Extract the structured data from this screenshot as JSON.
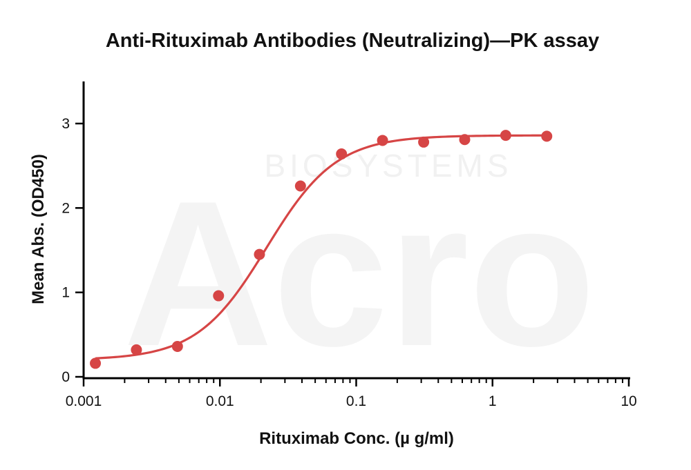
{
  "chart_data": {
    "type": "scatter",
    "title": "Anti-Rituximab Antibodies (Neutralizing)—PK assay",
    "xlabel": "Rituximab Conc. (µ g/ml)",
    "ylabel": "Mean Abs. (OD450)",
    "xscale": "log",
    "xlim": [
      0.001,
      10
    ],
    "ylim": [
      0,
      3.5
    ],
    "xticks": [
      0.001,
      0.01,
      0.1,
      1,
      10
    ],
    "xtick_labels": [
      "0.001",
      "0.01",
      "0.1",
      "1",
      "10"
    ],
    "yticks": [
      0,
      1,
      2,
      3
    ],
    "ytick_labels": [
      "0",
      "1",
      "2",
      "3"
    ],
    "grid": false,
    "legend": "none",
    "series": [
      {
        "points": [
          {
            "x": 0.00122,
            "y": 0.16
          },
          {
            "x": 0.00244,
            "y": 0.32
          },
          {
            "x": 0.00488,
            "y": 0.36
          },
          {
            "x": 0.00977,
            "y": 0.96
          },
          {
            "x": 0.0195,
            "y": 1.45
          },
          {
            "x": 0.039,
            "y": 2.26
          },
          {
            "x": 0.078,
            "y": 2.64
          },
          {
            "x": 0.156,
            "y": 2.8
          },
          {
            "x": 0.3125,
            "y": 2.78
          },
          {
            "x": 0.625,
            "y": 2.81
          },
          {
            "x": 1.25,
            "y": 2.86
          },
          {
            "x": 2.5,
            "y": 2.85
          }
        ],
        "fit": {
          "model": "4PL",
          "bottom": 0.2,
          "top": 2.86,
          "ec50": 0.022,
          "hill": 1.7
        }
      }
    ],
    "colors": {
      "series": "#d64545",
      "curve": "#d64545"
    }
  },
  "watermark": {
    "logo_text": "Acro",
    "sub_text": "BIOSYSTEMS"
  }
}
